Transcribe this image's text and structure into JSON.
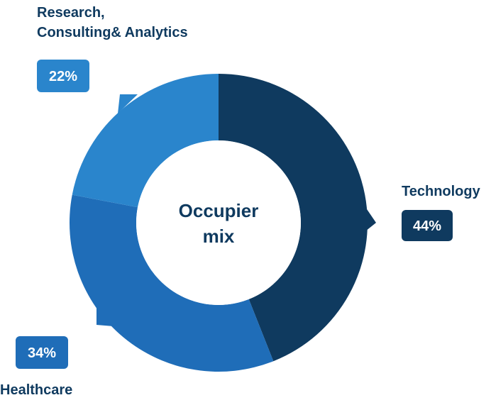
{
  "chart_data": {
    "type": "pie",
    "center_label": [
      "Occupier",
      "mix"
    ],
    "slices": [
      {
        "name": "Technology",
        "label_lines": [
          "Technology"
        ],
        "value": 44,
        "value_label": "44%",
        "color": "#0f3a5f"
      },
      {
        "name": "Healthcare",
        "label_lines": [
          "Healthcare"
        ],
        "value": 34,
        "value_label": "34%",
        "color": "#1f6db8"
      },
      {
        "name": "Research, Consulting& Analytics",
        "label_lines": [
          "Research,",
          "Consulting& Analytics"
        ],
        "value": 22,
        "value_label": "22%",
        "color": "#2a85cc"
      }
    ]
  },
  "colors": {
    "label_text": "#0f3a5f",
    "badge_text": "#ffffff",
    "center_fill": "#ffffff",
    "center_text": "#0f3a5f"
  }
}
